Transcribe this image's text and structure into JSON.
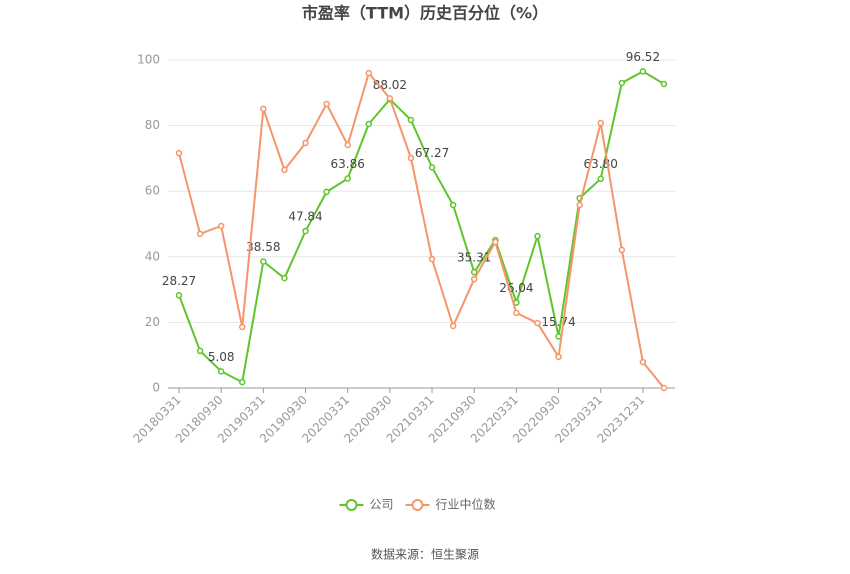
{
  "chart_data": {
    "type": "line",
    "title": "市盈率（TTM）历史百分位（%）",
    "categories": [
      "20180331",
      null,
      "20180930",
      null,
      "20190331",
      null,
      "20190930",
      null,
      "20200331",
      null,
      "20200930",
      null,
      "20210331",
      null,
      "20210930",
      null,
      "20220331",
      null,
      "20220930",
      null,
      "20230331",
      null,
      "20231231",
      null
    ],
    "series": [
      {
        "name": "公司",
        "color": "#5ec52d",
        "values": [
          28.27,
          11.3,
          5.08,
          1.8,
          38.58,
          33.5,
          47.84,
          59.8,
          63.86,
          80.5,
          88.02,
          81.7,
          67.27,
          55.8,
          35.31,
          45.1,
          26.04,
          46.3,
          15.74,
          57.9,
          63.8,
          93.0,
          96.52,
          92.7
        ],
        "value_labels": [
          "28.27",
          null,
          "5.08",
          null,
          "38.58",
          null,
          "47.84",
          null,
          "63.86",
          null,
          "88.02",
          null,
          "67.27",
          null,
          "35.31",
          null,
          "26.04",
          null,
          "15.74",
          null,
          "63.80",
          null,
          "96.52",
          null
        ]
      },
      {
        "name": "行业中位数",
        "color": "#f5956a",
        "values": [
          71.6,
          47.0,
          49.4,
          18.6,
          85.1,
          66.5,
          74.7,
          86.6,
          74.1,
          96.0,
          88.3,
          70.1,
          39.3,
          18.9,
          33.2,
          44.5,
          22.9,
          19.8,
          9.5,
          55.8,
          80.8,
          42.1,
          7.9,
          0
        ]
      }
    ],
    "ylim": [
      0,
      100
    ],
    "yticks": [
      0,
      20,
      40,
      60,
      80,
      100
    ],
    "grid": true,
    "legend": "bottom",
    "source": "数据来源：恒生聚源"
  }
}
